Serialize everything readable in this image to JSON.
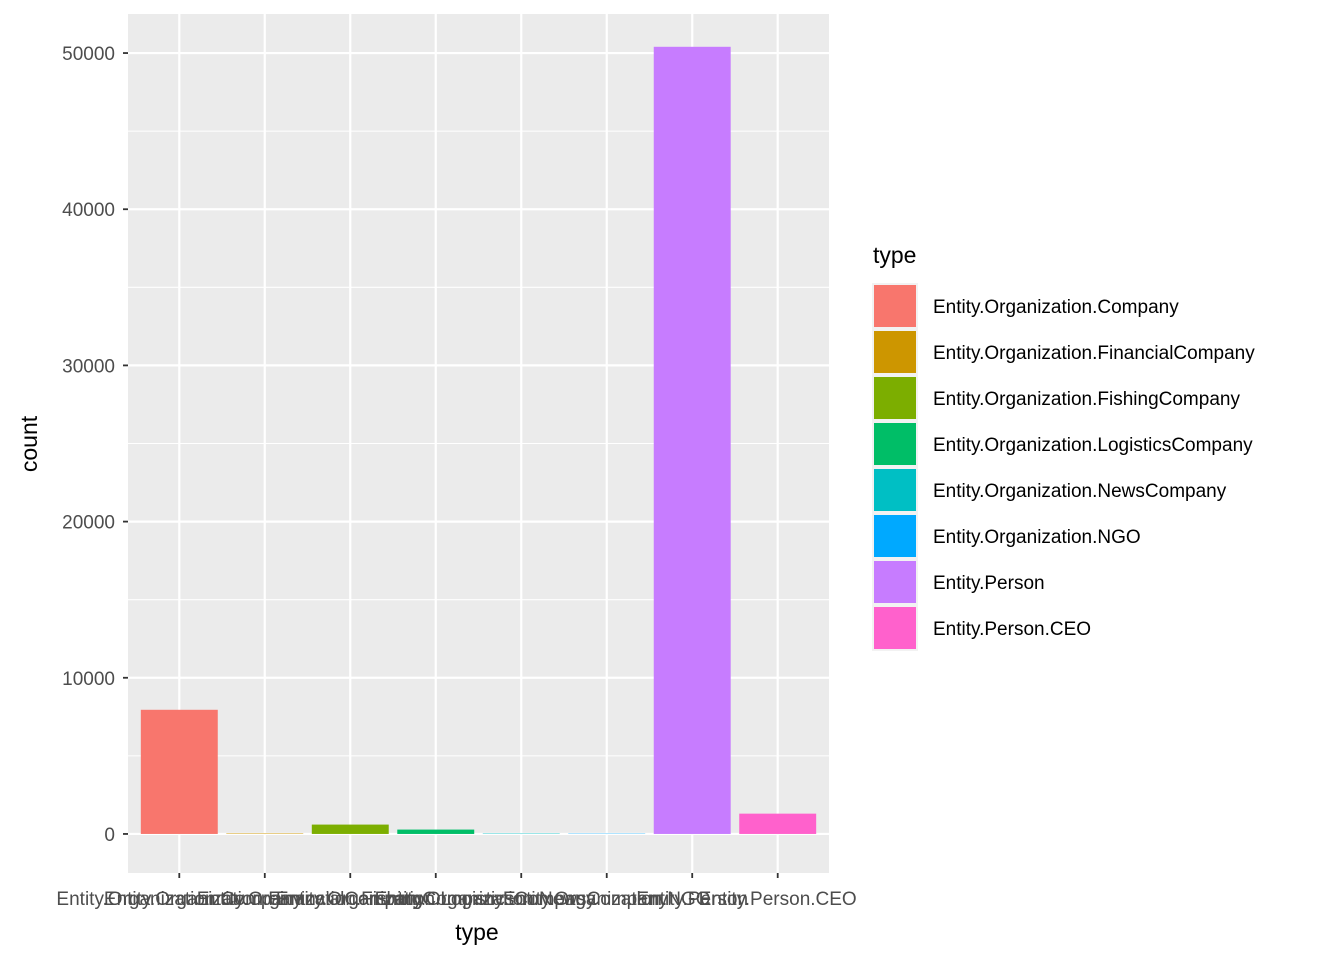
{
  "chart_data": {
    "type": "bar",
    "xlabel": "type",
    "ylabel": "count",
    "ylim": [
      -2500,
      52500
    ],
    "yticks": [
      0,
      10000,
      20000,
      30000,
      40000,
      50000
    ],
    "grid": true,
    "legend_position": "right",
    "legend_title": "type",
    "categories": [
      "Entity.Organization.Company",
      "Entity.Organization.FinancialCompany",
      "Entity.Organization.FishingCompany",
      "Entity.Organization.LogisticsCompany",
      "Entity.Organization.NewsCompany",
      "Entity.Organization.NGO",
      "Entity.Person",
      "Entity.Person.CEO"
    ],
    "values": [
      7950,
      30,
      600,
      280,
      25,
      20,
      50400,
      1300
    ],
    "colors": [
      "#F8766D",
      "#CD9600",
      "#7CAE00",
      "#00BE67",
      "#00BFC4",
      "#00A9FF",
      "#C77CFF",
      "#FF61CC"
    ]
  }
}
